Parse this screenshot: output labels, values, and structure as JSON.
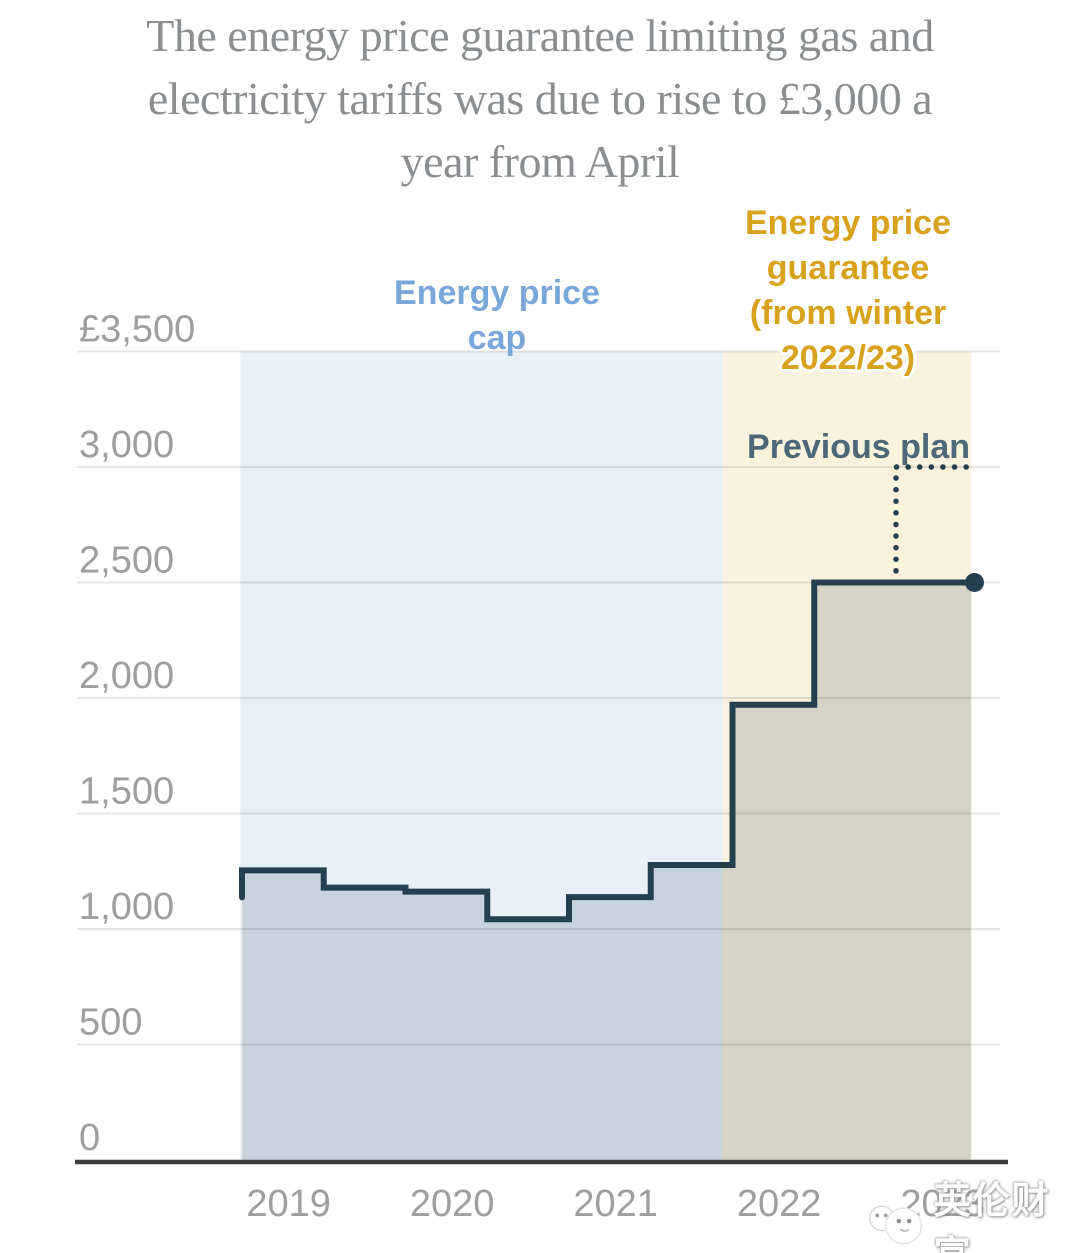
{
  "title": {
    "lines": [
      "The energy price guarantee limiting gas and",
      "electricity tariffs was due to rise to £3,000 a",
      "year from April"
    ]
  },
  "annotations": {
    "price_cap_label": {
      "lines": [
        "Energy price",
        "cap"
      ],
      "color": "#7aa7da"
    },
    "epg_label": {
      "lines": [
        "Energy price",
        "guarantee",
        "(from winter",
        "2022/23)"
      ],
      "color": "#d9a21c"
    },
    "previous_plan_label": {
      "text": "Previous plan",
      "color": "#4d6878"
    }
  },
  "watermark": {
    "text": "英伦财富"
  },
  "chart_data": {
    "type": "step-area",
    "unit": "£ per year",
    "ylim": [
      0,
      3500
    ],
    "grid": true,
    "y_ticks": {
      "labels": [
        "£3,500",
        "3,000",
        "2,500",
        "2,000",
        "1,500",
        "1,000",
        "500",
        "0"
      ],
      "values": [
        3500,
        3000,
        2500,
        2000,
        1500,
        1000,
        500,
        0
      ]
    },
    "x_ticks": {
      "labels": [
        "2019",
        "2020",
        "2021",
        "2022",
        "2023"
      ],
      "years": [
        2019,
        2020,
        2021,
        2022,
        2023
      ]
    },
    "steps": [
      {
        "from": "Jan 2019",
        "t": 2019.0,
        "value": 1137
      },
      {
        "from": "Apr 2019",
        "t": 2019.25,
        "value": 1254
      },
      {
        "from": "Oct 2019",
        "t": 2019.75,
        "value": 1179
      },
      {
        "from": "Apr 2020",
        "t": 2020.25,
        "value": 1162
      },
      {
        "from": "Oct 2020",
        "t": 2020.75,
        "value": 1042
      },
      {
        "from": "Apr 2021",
        "t": 2021.25,
        "value": 1138
      },
      {
        "from": "Oct 2021",
        "t": 2021.75,
        "value": 1277
      },
      {
        "from": "Apr 2022",
        "t": 2022.25,
        "value": 1971
      },
      {
        "from": "Oct 2022",
        "t": 2022.75,
        "value": 2500
      }
    ],
    "series_end_t": 2023.73,
    "previous_plan": {
      "label": "Previous plan",
      "from": "Apr 2023",
      "t": 2023.25,
      "value": 3000,
      "t_end": 2023.69
    },
    "regions": [
      {
        "label": "Energy price cap",
        "t0": 2019.24,
        "t1": 2022.19,
        "color": "#eaf0f8"
      },
      {
        "label": "Energy price guarantee (from winter 2022/23)",
        "t0": 2022.19,
        "t1": 2023.71,
        "color": "#f9f2dc"
      }
    ],
    "colors": {
      "line": "#24404f",
      "area": "rgba(32,62,78,0.16)",
      "grid": "rgba(0,0,0,0.10)",
      "axis": "#3c3c3c",
      "tick_label": "#9e9e9e"
    }
  }
}
